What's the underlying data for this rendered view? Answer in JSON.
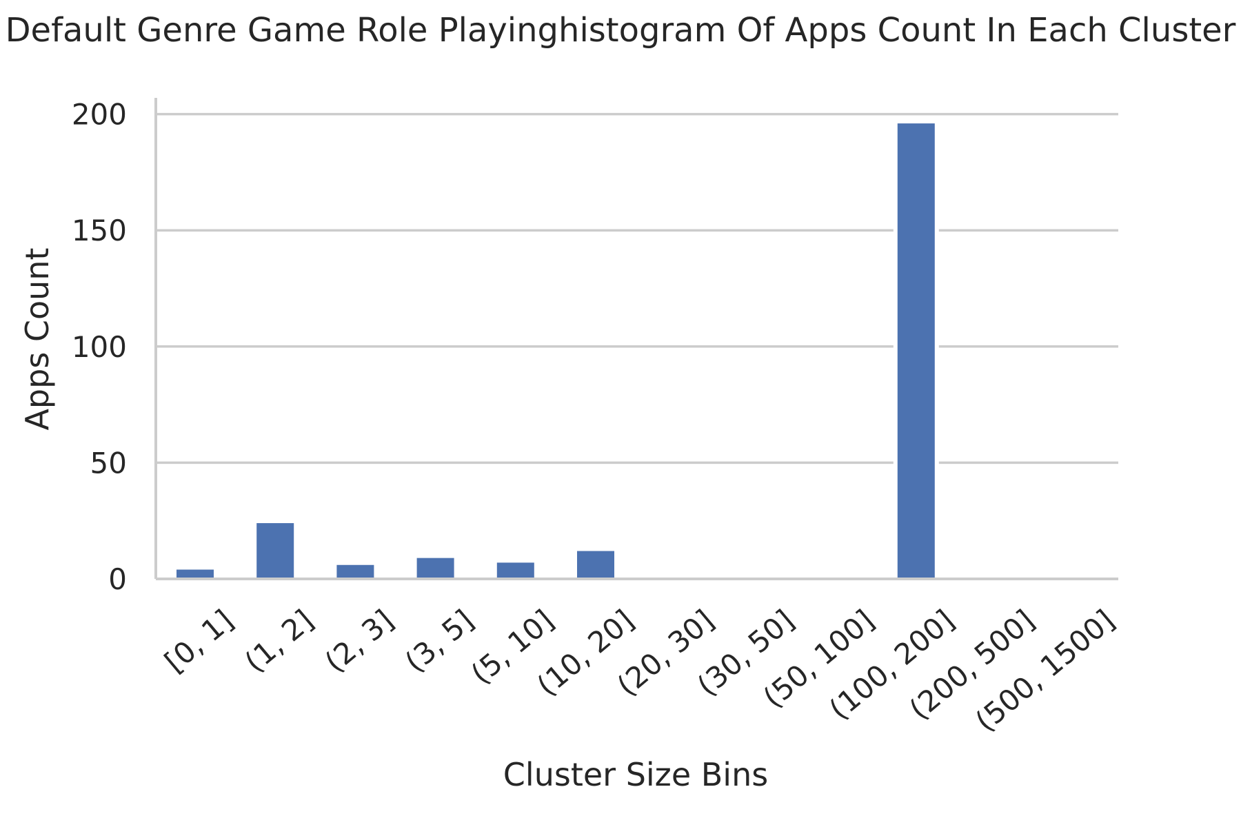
{
  "chart_data": {
    "type": "bar",
    "title": "Default Genre Game Role Playinghistogram Of Apps Count In Each Cluster",
    "xlabel": "Cluster Size Bins",
    "ylabel": "Apps Count",
    "categories": [
      "[0, 1]",
      "(1, 2]",
      "(2, 3]",
      "(3, 5]",
      "(5, 10]",
      "(10, 20]",
      "(20, 30]",
      "(30, 50]",
      "(50, 100]",
      "(100, 200]",
      "(200, 500]",
      "(500, 1500]"
    ],
    "values": [
      4,
      24,
      6,
      9,
      7,
      12,
      0,
      0,
      0,
      196,
      0,
      0
    ],
    "ylim": [
      0,
      207
    ],
    "yticks": [
      0,
      50,
      100,
      150,
      200
    ],
    "grid": "horizontal",
    "bar_color": "#4c72b0",
    "legend": "none"
  }
}
